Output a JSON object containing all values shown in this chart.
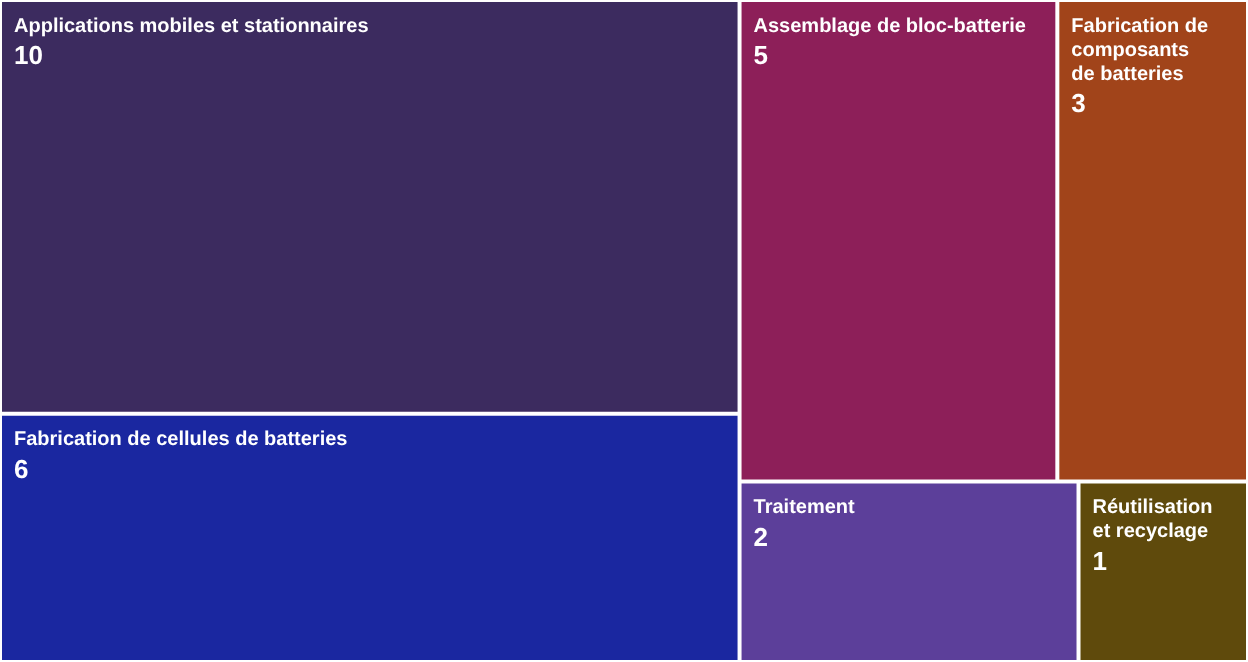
{
  "chart_data": {
    "type": "other",
    "categories": [
      "Applications mobiles et stationnaires",
      "Fabrication de cellules de batteries",
      "Assemblage de bloc-batterie",
      "Fabrication de composants de batteries",
      "Traitement",
      "Réutilisation et recyclage"
    ],
    "values": [
      10,
      6,
      5,
      3,
      2,
      1
    ],
    "colors": [
      "#3c2b5f",
      "#1a27a0",
      "#8d1f59",
      "#a1441a",
      "#5c3f9a",
      "#5f4a0c"
    ],
    "data_labels": true
  }
}
